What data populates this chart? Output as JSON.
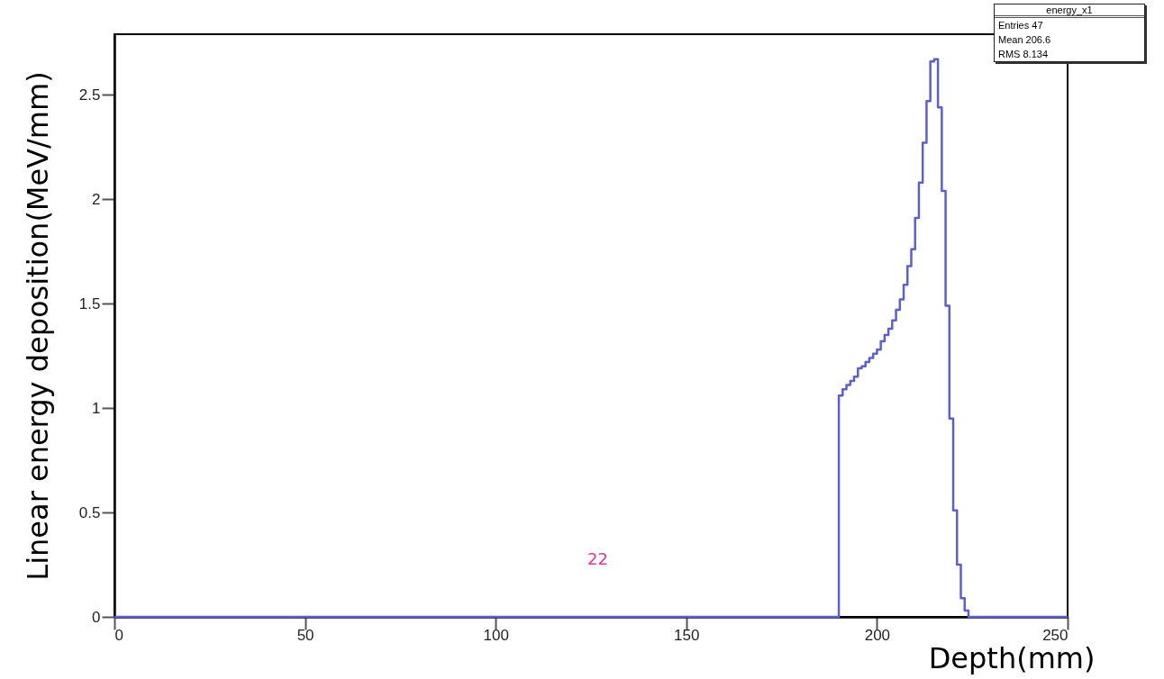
{
  "chart_data": {
    "type": "histogram",
    "xlabel": "Depth(mm)",
    "ylabel": "Linear energy deposition(MeV/mm)",
    "bins": [
      0,
      190,
      191,
      192,
      193,
      194,
      195,
      196,
      197,
      198,
      199,
      200,
      201,
      202,
      203,
      204,
      205,
      206,
      207,
      208,
      209,
      210,
      211,
      212,
      213,
      214,
      215,
      216,
      217,
      218,
      219,
      220,
      221,
      222,
      223,
      224,
      250
    ],
    "values": [
      0,
      1.06,
      1.09,
      1.11,
      1.13,
      1.15,
      1.19,
      1.2,
      1.22,
      1.24,
      1.26,
      1.28,
      1.32,
      1.35,
      1.38,
      1.42,
      1.47,
      1.52,
      1.59,
      1.68,
      1.76,
      1.91,
      2.08,
      2.27,
      2.47,
      2.66,
      2.67,
      2.44,
      2.04,
      1.49,
      0.95,
      0.51,
      0.25,
      0.09,
      0.03,
      0
    ],
    "color": "#5c60c8",
    "xlim": [
      0,
      250
    ],
    "ylim": [
      0,
      2.79
    ],
    "xticks": [
      0,
      50,
      100,
      150,
      200,
      250
    ],
    "yticks": [
      0,
      0.5,
      1,
      1.5,
      2,
      2.5
    ],
    "grid": false,
    "annotations": [
      "energy_x1",
      "Entries 47",
      "Mean 206.6",
      "RMS 8.134",
      "22"
    ]
  }
}
